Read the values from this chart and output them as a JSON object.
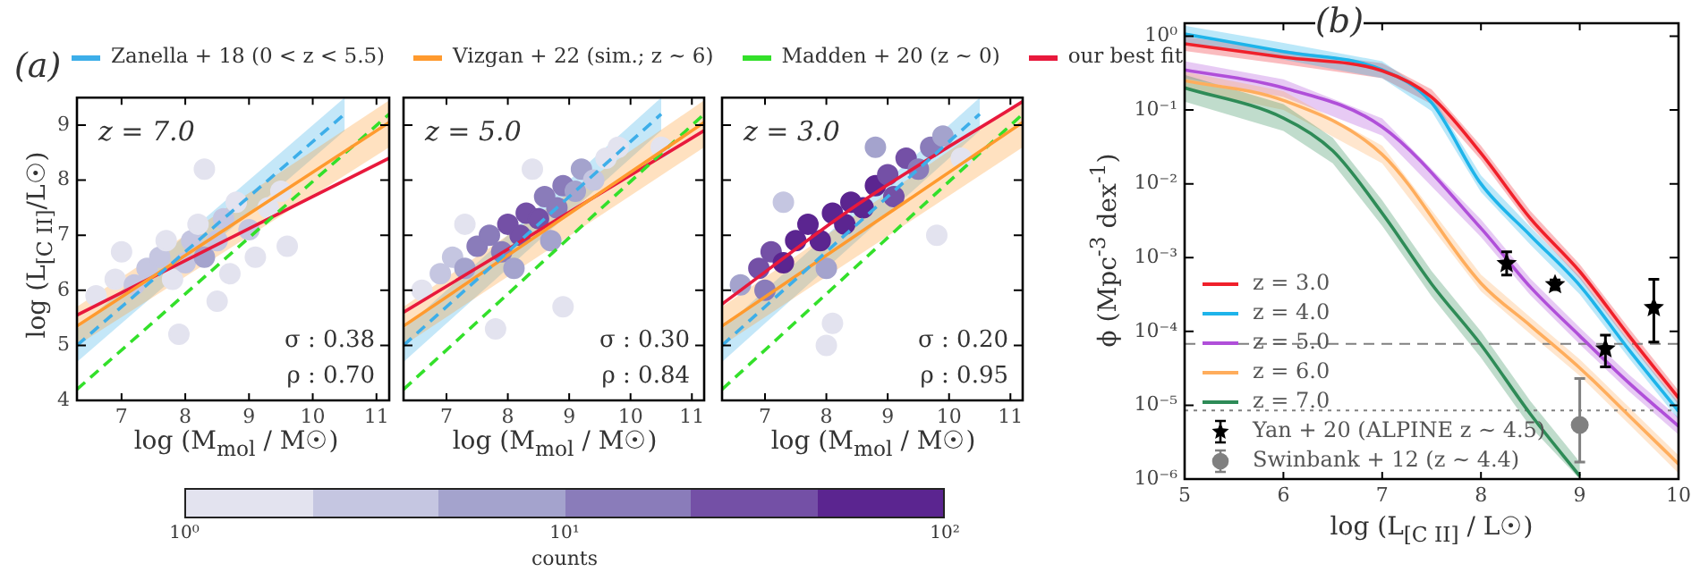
{
  "chart_data": [
    {
      "type": "scatter",
      "title": "(a)",
      "xlabel": "log (M$_{mol}$ / M☉)",
      "ylabel": "log (L$_{[C II]}$/L☉)",
      "clabel": "counts",
      "legend": "top",
      "xlim": [
        6.3,
        11.2
      ],
      "ylim": [
        4,
        9.5
      ],
      "xticks": [
        7,
        8,
        9,
        10,
        11
      ],
      "yticks": [
        4,
        5,
        6,
        7,
        8,
        9
      ],
      "annotations": [
        "z = 7.0",
        "σ : 0.38",
        "ρ : 0.70",
        "10⁰",
        "10¹",
        "10²"
      ],
      "series": [
        {
          "type": "scatter",
          "marker": "circle",
          "x": [
            6.6,
            6.9,
            7.0,
            7.2,
            7.4,
            7.6,
            7.7,
            7.8,
            8.0,
            8.1,
            8.2,
            8.3,
            8.5,
            8.6,
            8.7,
            8.8,
            9.0,
            9.1,
            9.3,
            9.5,
            7.9,
            8.5,
            8.3,
            9.6
          ],
          "values": [
            5.9,
            6.2,
            6.7,
            6.1,
            6.4,
            6.6,
            6.9,
            6.2,
            6.5,
            6.9,
            7.2,
            6.6,
            6.9,
            7.3,
            6.3,
            7.6,
            7.1,
            6.6,
            7.5,
            7.8,
            5.2,
            5.8,
            8.2,
            6.8
          ],
          "colors": [
            "#e3e3ef",
            "#e3e3ef",
            "#e3e3ef",
            "#c5c6e1",
            "#c5c6e1",
            "#c5c6e1",
            "#e3e3ef",
            "#e3e3ef",
            "#c5c6e1",
            "#c5c6e1",
            "#e3e3ef",
            "#a4a3cd",
            "#c5c6e1",
            "#c5c6e1",
            "#e3e3ef",
            "#e3e3ef",
            "#c5c6e1",
            "#e3e3ef",
            "#e3e3ef",
            "#e3e3ef",
            "#e3e3ef",
            "#e3e3ef",
            "#e3e3ef",
            "#e3e3ef"
          ]
        },
        {
          "type": "line",
          "name": "Zanella + 18 (0 < z < 5.5)",
          "color": "#3daee9",
          "line_style": "dashed",
          "x": [
            6.3,
            10.5
          ],
          "values": [
            5.0,
            9.2
          ],
          "lower": [
            4.7,
            8.9
          ],
          "upper": [
            5.3,
            9.5
          ]
        },
        {
          "type": "line",
          "name": "Vizgan + 22 (sim.; z ∼ 6)",
          "color": "#ff9a2e",
          "line_style": "solid",
          "x": [
            6.3,
            11.2
          ],
          "values": [
            5.35,
            9.05
          ],
          "lower": [
            5.0,
            8.6
          ],
          "upper": [
            5.7,
            9.45
          ]
        },
        {
          "type": "line",
          "name": "Madden + 20 (z ∼ 0)",
          "color": "#33e02a",
          "line_style": "dashed",
          "x": [
            6.3,
            11.2
          ],
          "values": [
            4.2,
            9.2
          ]
        },
        {
          "type": "line",
          "name": "our best fit",
          "color": "#e8193c",
          "line_style": "solid",
          "x": [
            6.3,
            11.2
          ],
          "values": [
            5.55,
            8.4
          ]
        }
      ]
    },
    {
      "type": "scatter",
      "xlabel": "log (M$_{mol}$ / M☉)",
      "xlim": [
        6.3,
        11.2
      ],
      "ylim": [
        4,
        9.5
      ],
      "xticks": [
        7,
        8,
        9,
        10,
        11
      ],
      "yticks": [
        4,
        5,
        6,
        7,
        8,
        9
      ],
      "tick_labels": "x",
      "annotations": [
        "z = 5.0",
        "σ : 0.30",
        "ρ : 0.84"
      ],
      "series": [
        {
          "type": "scatter",
          "marker": "circle",
          "x": [
            6.6,
            6.9,
            7.1,
            7.3,
            7.5,
            7.7,
            7.9,
            8.0,
            8.2,
            8.3,
            8.5,
            8.6,
            8.8,
            8.9,
            9.1,
            9.2,
            9.4,
            9.6,
            9.8,
            8.1,
            8.7,
            7.3,
            8.4,
            10.5,
            8.9,
            7.8
          ],
          "values": [
            6.0,
            6.3,
            6.6,
            6.4,
            6.8,
            7.0,
            6.7,
            7.2,
            7.0,
            7.4,
            7.3,
            7.7,
            7.5,
            7.9,
            7.8,
            8.2,
            8.0,
            8.4,
            8.6,
            6.4,
            6.9,
            7.2,
            8.2,
            8.6,
            5.7,
            5.3
          ],
          "colors": [
            "#e3e3ef",
            "#c5c6e1",
            "#c5c6e1",
            "#a4a3cd",
            "#8a7cba",
            "#8a7cba",
            "#8a7cba",
            "#7450a6",
            "#7450a6",
            "#7450a6",
            "#7450a6",
            "#8a7cba",
            "#8a7cba",
            "#8a7cba",
            "#a4a3cd",
            "#a4a3cd",
            "#c5c6e1",
            "#e3e3ef",
            "#e3e3ef",
            "#a4a3cd",
            "#a4a3cd",
            "#e3e3ef",
            "#e3e3ef",
            "#e3e3ef",
            "#e3e3ef",
            "#e3e3ef"
          ]
        },
        {
          "type": "line",
          "color": "#3daee9",
          "line_style": "dashed",
          "x": [
            6.3,
            10.5
          ],
          "values": [
            5.0,
            9.2
          ],
          "lower": [
            4.7,
            8.9
          ],
          "upper": [
            5.3,
            9.5
          ]
        },
        {
          "type": "line",
          "color": "#ff9a2e",
          "line_style": "solid",
          "x": [
            6.3,
            11.2
          ],
          "values": [
            5.35,
            9.05
          ],
          "lower": [
            5.0,
            8.6
          ],
          "upper": [
            5.7,
            9.45
          ]
        },
        {
          "type": "line",
          "color": "#33e02a",
          "line_style": "dashed",
          "x": [
            6.3,
            11.2
          ],
          "values": [
            4.2,
            9.2
          ]
        },
        {
          "type": "line",
          "color": "#e8193c",
          "line_style": "solid",
          "x": [
            6.3,
            11.2
          ],
          "values": [
            5.6,
            8.9
          ]
        }
      ]
    },
    {
      "type": "scatter",
      "xlabel": "log (M$_{mol}$ / M☉)",
      "xlim": [
        6.3,
        11.2
      ],
      "ylim": [
        4,
        9.5
      ],
      "xticks": [
        7,
        8,
        9,
        10,
        11
      ],
      "yticks": [
        4,
        5,
        6,
        7,
        8,
        9
      ],
      "tick_labels": "x",
      "annotations": [
        "z = 3.0",
        "σ : 0.20",
        "ρ : 0.95"
      ],
      "series": [
        {
          "type": "scatter",
          "marker": "circle",
          "x": [
            6.6,
            6.9,
            7.1,
            7.3,
            7.5,
            7.7,
            7.9,
            8.1,
            8.3,
            8.4,
            8.6,
            8.8,
            9.0,
            9.1,
            9.3,
            9.5,
            9.7,
            9.9,
            7.0,
            8.0,
            8.8,
            8.0,
            8.1,
            9.8,
            10.2,
            7.3
          ],
          "values": [
            6.1,
            6.4,
            6.7,
            6.5,
            6.9,
            7.2,
            6.9,
            7.4,
            7.2,
            7.6,
            7.5,
            7.9,
            8.1,
            7.7,
            8.4,
            8.2,
            8.6,
            8.8,
            6.0,
            6.4,
            8.6,
            5.0,
            5.4,
            7.0,
            8.4,
            7.6
          ],
          "colors": [
            "#a4a3cd",
            "#7450a6",
            "#7450a6",
            "#5b2590",
            "#5b2590",
            "#5b2590",
            "#5b2590",
            "#5b2590",
            "#5b2590",
            "#5b2590",
            "#5b2590",
            "#5b2590",
            "#7450a6",
            "#7450a6",
            "#7450a6",
            "#8a7cba",
            "#8a7cba",
            "#a4a3cd",
            "#8a7cba",
            "#a4a3cd",
            "#a4a3cd",
            "#e3e3ef",
            "#e3e3ef",
            "#e3e3ef",
            "#e3e3ef",
            "#c5c6e1"
          ]
        },
        {
          "type": "line",
          "color": "#3daee9",
          "line_style": "dashed",
          "x": [
            6.3,
            10.5
          ],
          "values": [
            5.0,
            9.2
          ],
          "lower": [
            4.7,
            8.9
          ],
          "upper": [
            5.3,
            9.5
          ]
        },
        {
          "type": "line",
          "color": "#ff9a2e",
          "line_style": "solid",
          "x": [
            6.3,
            11.2
          ],
          "values": [
            5.35,
            9.05
          ],
          "lower": [
            5.0,
            8.6
          ],
          "upper": [
            5.7,
            9.45
          ]
        },
        {
          "type": "line",
          "color": "#33e02a",
          "line_style": "dashed",
          "x": [
            6.3,
            11.2
          ],
          "values": [
            4.2,
            9.2
          ]
        },
        {
          "type": "line",
          "color": "#e8193c",
          "line_style": "solid",
          "x": [
            6.3,
            8.5,
            11.2
          ],
          "values": [
            5.75,
            7.55,
            9.43
          ]
        }
      ]
    },
    {
      "type": "line",
      "title": "(b)",
      "xlabel": "log (L$_{[C II]}$ / L☉)",
      "ylabel": "ϕ (Mpc$^{-3}$ dex$^{-1}$)",
      "log": "y",
      "legend": "bottom left",
      "xlim": [
        5,
        10
      ],
      "ylim": [
        1e-06,
        1.5
      ],
      "xticks": [
        5,
        6,
        7,
        8,
        9,
        10
      ],
      "yticks": [
        {
          "value": 1,
          "label": "10⁰"
        },
        {
          "value": 0.1,
          "label": "10⁻¹"
        },
        {
          "value": 0.01,
          "label": "10⁻²"
        },
        {
          "value": 0.001,
          "label": "10⁻³"
        },
        {
          "value": 0.0001,
          "label": "10⁻⁴"
        },
        {
          "value": 1e-05,
          "label": "10⁻⁵"
        },
        {
          "value": 1e-06,
          "label": "10⁻⁶"
        }
      ],
      "ref_lines": [
        {
          "axis": "y",
          "value": 6.8e-05,
          "color": "#808080",
          "line_style": "dashed"
        },
        {
          "axis": "y",
          "value": 8.5e-06,
          "color": "#808080",
          "line_style": "dotted"
        }
      ],
      "series": [
        {
          "name": "z = 3.0",
          "color": "#f0202a",
          "x": [
            5,
            6,
            7,
            7.5,
            8,
            8.5,
            9,
            9.5,
            10
          ],
          "values": [
            0.79,
            0.52,
            0.34,
            0.15,
            0.026,
            0.0034,
            0.00065,
            8.7e-05,
            1.26e-05
          ],
          "upper": [
            0.99,
            0.65,
            0.43,
            0.19,
            0.033,
            0.0043,
            0.00081,
            0.00011,
            1.58e-05
          ],
          "lower": [
            0.63,
            0.42,
            0.27,
            0.12,
            0.021,
            0.0027,
            0.00052,
            7e-05,
            1.01e-05
          ]
        },
        {
          "name": "z = 4.0",
          "color": "#1eb4ea",
          "x": [
            5,
            6,
            7,
            7.5,
            8,
            8.5,
            9,
            9.5,
            10
          ],
          "values": [
            1.07,
            0.62,
            0.35,
            0.126,
            0.01,
            0.002,
            0.00042,
            5.6e-05,
            8.3e-06
          ],
          "upper": [
            1.39,
            0.81,
            0.46,
            0.16,
            0.013,
            0.0026,
            0.00055,
            7.3e-05,
            1.08e-05
          ],
          "lower": [
            0.82,
            0.48,
            0.27,
            0.097,
            0.0077,
            0.0015,
            0.00032,
            4.3e-05,
            6.4e-06
          ]
        },
        {
          "name": "z = 5.0",
          "color": "#b04fd9",
          "x": [
            5,
            6,
            7,
            8,
            8.5,
            9,
            9.5,
            10
          ],
          "values": [
            0.35,
            0.2,
            0.059,
            0.0025,
            0.0004,
            8.7e-05,
            2e-05,
            5.2e-06
          ],
          "upper": [
            0.46,
            0.26,
            0.077,
            0.0033,
            0.00052,
            0.000113,
            2.6e-05,
            6.8e-06
          ],
          "lower": [
            0.27,
            0.15,
            0.045,
            0.0019,
            0.00031,
            6.7e-05,
            1.54e-05,
            4e-06
          ]
        },
        {
          "name": "z = 6.0",
          "color": "#ffad5c",
          "x": [
            5,
            6,
            7,
            8,
            8.5,
            9,
            9.5,
            10
          ],
          "values": [
            0.25,
            0.135,
            0.025,
            0.00045,
            0.00012,
            3.2e-05,
            7.2e-06,
            1.6e-06
          ],
          "upper": [
            0.33,
            0.18,
            0.033,
            0.00059,
            0.000156,
            4.2e-05,
            9.4e-06,
            2.1e-06
          ],
          "lower": [
            0.19,
            0.1,
            0.019,
            0.00035,
            9.2e-05,
            2.5e-05,
            5.5e-06,
            1.2e-06
          ]
        },
        {
          "name": "z = 7.0",
          "color": "#2e8b57",
          "x": [
            5,
            6,
            6.5,
            7,
            7.5,
            8,
            8.5,
            9
          ],
          "values": [
            0.2,
            0.078,
            0.028,
            0.004,
            0.00044,
            6.6e-05,
            7.6e-06,
            1.1e-06
          ],
          "upper": [
            0.3,
            0.12,
            0.042,
            0.006,
            0.00066,
            0.0001,
            1.14e-05,
            1.7e-06
          ],
          "lower": [
            0.13,
            0.052,
            0.019,
            0.0027,
            0.0003,
            4.4e-05,
            5.1e-06,
            1e-06
          ]
        },
        {
          "type": "scatter",
          "marker": "star",
          "name": "Yan + 20 (ALPINE z ∼ 4.5)",
          "color": "#000000",
          "x": [
            8.26,
            8.75,
            9.26,
            9.75
          ],
          "values": [
            0.00083,
            0.00043,
            5.8e-05,
            0.00021
          ],
          "errors": [
            [
              0.00058,
              0.0012
            ],
            [
              0.00037,
              0.0005
            ],
            [
              3.3e-05,
              8.9e-05
            ],
            [
              7.2e-05,
              0.00051
            ]
          ]
        },
        {
          "type": "scatter",
          "marker": "circle",
          "name": "Swinbank + 12 (z ∼ 4.4)",
          "color": "#808080",
          "x": [
            9.0
          ],
          "values": [
            5.4e-06
          ],
          "errors": [
            [
              1.7e-06,
              2.3e-05
            ]
          ]
        }
      ]
    }
  ]
}
